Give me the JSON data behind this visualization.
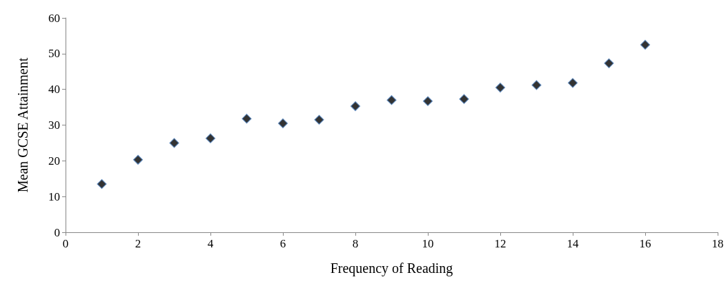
{
  "chart_data": {
    "type": "scatter",
    "xlabel": "Frequency of Reading",
    "ylabel": "Mean GCSE Attainment",
    "x": [
      1,
      2,
      3,
      4,
      5,
      6,
      7,
      8,
      9,
      10,
      11,
      12,
      13,
      14,
      15,
      16
    ],
    "series": [
      {
        "color": "#000000",
        "values": [
          13.5,
          20.3,
          25,
          26.3,
          31.8,
          30.5,
          31.5,
          35.3,
          37,
          36.7,
          37.3,
          40.5,
          41.2,
          41.8,
          47.3,
          52.5
        ]
      }
    ],
    "xlim": [
      0,
      18
    ],
    "xticks": [
      0,
      2,
      4,
      6,
      8,
      10,
      12,
      14,
      16,
      18
    ],
    "ylim": [
      0,
      60
    ],
    "yticks": [
      0,
      10,
      20,
      30,
      40,
      50,
      60
    ],
    "grid": false,
    "marker": "diamond"
  }
}
